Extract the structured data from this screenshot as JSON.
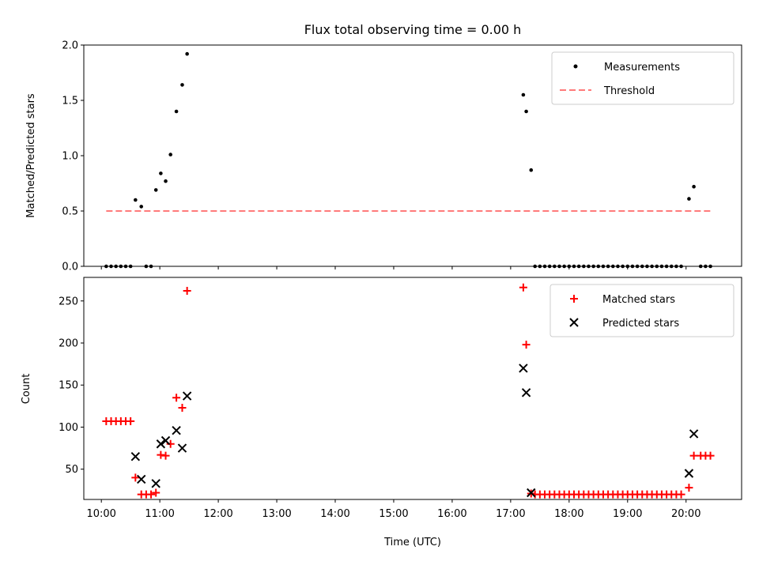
{
  "chart_data": [
    {
      "type": "scatter",
      "title": "Flux total observing time = 0.00 h",
      "xlabel": "",
      "ylabel": "Matched/Predicted stars",
      "ylim": [
        0,
        2.0
      ],
      "yticks": [
        "0.0",
        "0.5",
        "1.0",
        "1.5",
        "2.0"
      ],
      "xlim": [
        "09:42",
        "20:57"
      ],
      "legend_position": "upper right",
      "series": [
        {
          "name": "Measurements",
          "marker": "dot",
          "color": "#000000",
          "points": [
            [
              "10:05",
              0
            ],
            [
              "10:10",
              0
            ],
            [
              "10:15",
              0
            ],
            [
              "10:20",
              0
            ],
            [
              "10:25",
              0
            ],
            [
              "10:30",
              0
            ],
            [
              "10:35",
              0.6
            ],
            [
              "10:41",
              0.54
            ],
            [
              "10:46",
              0
            ],
            [
              "10:51",
              0
            ],
            [
              "10:56",
              0.69
            ],
            [
              "11:01",
              0.84
            ],
            [
              "11:06",
              0.77
            ],
            [
              "11:11",
              1.01
            ],
            [
              "11:17",
              1.4
            ],
            [
              "11:23",
              1.64
            ],
            [
              "11:28",
              1.92
            ],
            [
              "17:13",
              1.55
            ],
            [
              "17:16",
              1.4
            ],
            [
              "17:21",
              0.87
            ],
            [
              "17:25",
              0
            ],
            [
              "17:30",
              0
            ],
            [
              "17:35",
              0
            ],
            [
              "17:40",
              0
            ],
            [
              "17:45",
              0
            ],
            [
              "17:50",
              0
            ],
            [
              "17:55",
              0
            ],
            [
              "18:00",
              0
            ],
            [
              "18:05",
              0
            ],
            [
              "18:10",
              0
            ],
            [
              "18:15",
              0
            ],
            [
              "18:20",
              0
            ],
            [
              "18:25",
              0
            ],
            [
              "18:30",
              0
            ],
            [
              "18:35",
              0
            ],
            [
              "18:40",
              0
            ],
            [
              "18:45",
              0
            ],
            [
              "18:50",
              0
            ],
            [
              "18:55",
              0
            ],
            [
              "19:00",
              0
            ],
            [
              "19:05",
              0
            ],
            [
              "19:10",
              0
            ],
            [
              "19:15",
              0
            ],
            [
              "19:20",
              0
            ],
            [
              "19:25",
              0
            ],
            [
              "19:30",
              0
            ],
            [
              "19:35",
              0
            ],
            [
              "19:40",
              0
            ],
            [
              "19:45",
              0
            ],
            [
              "19:50",
              0
            ],
            [
              "19:55",
              0
            ],
            [
              "20:03",
              0.61
            ],
            [
              "20:08",
              0.72
            ],
            [
              "20:15",
              0
            ],
            [
              "20:20",
              0
            ],
            [
              "20:25",
              0
            ]
          ]
        },
        {
          "name": "Threshold",
          "marker": "dashed-line",
          "color": "#ff7a7a",
          "points": [
            [
              "10:05",
              0.5
            ],
            [
              "20:25",
              0.5
            ]
          ]
        }
      ]
    },
    {
      "type": "scatter",
      "title": "",
      "xlabel": "Time (UTC)",
      "ylabel": "Count",
      "ylim": [
        14,
        278
      ],
      "yticks": [
        "50",
        "100",
        "150",
        "200",
        "250"
      ],
      "xlim": [
        "09:42",
        "20:57"
      ],
      "xticks": [
        "10:00",
        "11:00",
        "12:00",
        "13:00",
        "14:00",
        "15:00",
        "16:00",
        "17:00",
        "18:00",
        "19:00",
        "20:00"
      ],
      "legend_position": "upper right",
      "series": [
        {
          "name": "Matched stars",
          "marker": "plus",
          "color": "#ff0000",
          "points": [
            [
              "10:05",
              107
            ],
            [
              "10:10",
              107
            ],
            [
              "10:15",
              107
            ],
            [
              "10:20",
              107
            ],
            [
              "10:25",
              107
            ],
            [
              "10:30",
              107
            ],
            [
              "10:35",
              40
            ],
            [
              "10:41",
              20
            ],
            [
              "10:46",
              20
            ],
            [
              "10:51",
              20
            ],
            [
              "10:56",
              22
            ],
            [
              "11:01",
              67
            ],
            [
              "11:06",
              66
            ],
            [
              "11:11",
              80
            ],
            [
              "11:17",
              135
            ],
            [
              "11:23",
              123
            ],
            [
              "11:28",
              262
            ],
            [
              "17:13",
              266
            ],
            [
              "17:16",
              198
            ],
            [
              "17:21",
              21
            ],
            [
              "17:25",
              20
            ],
            [
              "17:30",
              20
            ],
            [
              "17:35",
              20
            ],
            [
              "17:40",
              20
            ],
            [
              "17:45",
              20
            ],
            [
              "17:50",
              20
            ],
            [
              "17:55",
              20
            ],
            [
              "18:00",
              20
            ],
            [
              "18:05",
              20
            ],
            [
              "18:10",
              20
            ],
            [
              "18:15",
              20
            ],
            [
              "18:20",
              20
            ],
            [
              "18:25",
              20
            ],
            [
              "18:30",
              20
            ],
            [
              "18:35",
              20
            ],
            [
              "18:40",
              20
            ],
            [
              "18:45",
              20
            ],
            [
              "18:50",
              20
            ],
            [
              "18:55",
              20
            ],
            [
              "19:00",
              20
            ],
            [
              "19:05",
              20
            ],
            [
              "19:10",
              20
            ],
            [
              "19:15",
              20
            ],
            [
              "19:20",
              20
            ],
            [
              "19:25",
              20
            ],
            [
              "19:30",
              20
            ],
            [
              "19:35",
              20
            ],
            [
              "19:40",
              20
            ],
            [
              "19:45",
              20
            ],
            [
              "19:50",
              20
            ],
            [
              "19:55",
              20
            ],
            [
              "20:03",
              28
            ],
            [
              "20:08",
              66
            ],
            [
              "20:15",
              66
            ],
            [
              "20:20",
              66
            ],
            [
              "20:25",
              66
            ]
          ]
        },
        {
          "name": "Predicted stars",
          "marker": "x",
          "color": "#000000",
          "points": [
            [
              "10:35",
              65
            ],
            [
              "10:41",
              38
            ],
            [
              "10:56",
              33
            ],
            [
              "11:01",
              80
            ],
            [
              "11:06",
              84
            ],
            [
              "11:17",
              96
            ],
            [
              "11:23",
              75
            ],
            [
              "11:28",
              137
            ],
            [
              "17:13",
              170
            ],
            [
              "17:16",
              141
            ],
            [
              "17:21",
              22
            ],
            [
              "20:03",
              45
            ],
            [
              "20:08",
              92
            ]
          ]
        }
      ]
    }
  ]
}
